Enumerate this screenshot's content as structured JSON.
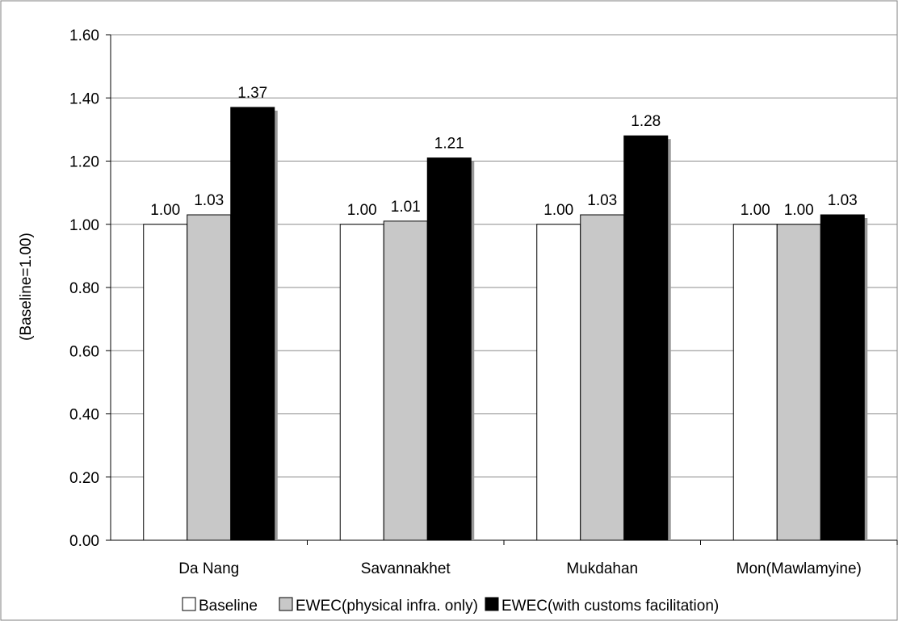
{
  "chart_data": {
    "type": "bar",
    "title": "",
    "xlabel": "",
    "ylabel": "(Baseline=1.00)",
    "ylim": [
      0,
      1.6
    ],
    "yticks": [
      "0.00",
      "0.20",
      "0.40",
      "0.60",
      "0.80",
      "1.00",
      "1.20",
      "1.40",
      "1.60"
    ],
    "grid": true,
    "legend_position": "bottom",
    "categories": [
      "Da Nang",
      "Savannakhet",
      "Mukdahan",
      "Mon(Mawlamyine)"
    ],
    "series": [
      {
        "name": "Baseline",
        "color": "#ffffff",
        "values": [
          1.0,
          1.0,
          1.0,
          1.0
        ],
        "labels": [
          "1.00",
          "1.00",
          "1.00",
          "1.00"
        ]
      },
      {
        "name": "EWEC(physical infra. only)",
        "color": "#c8c8c8",
        "values": [
          1.03,
          1.01,
          1.03,
          1.0
        ],
        "labels": [
          "1.03",
          "1.01",
          "1.03",
          "1.00"
        ]
      },
      {
        "name": "EWEC(with customs facilitation)",
        "color": "#000000",
        "values": [
          1.37,
          1.21,
          1.28,
          1.03
        ],
        "labels": [
          "1.37",
          "1.21",
          "1.28",
          "1.03"
        ]
      }
    ]
  }
}
